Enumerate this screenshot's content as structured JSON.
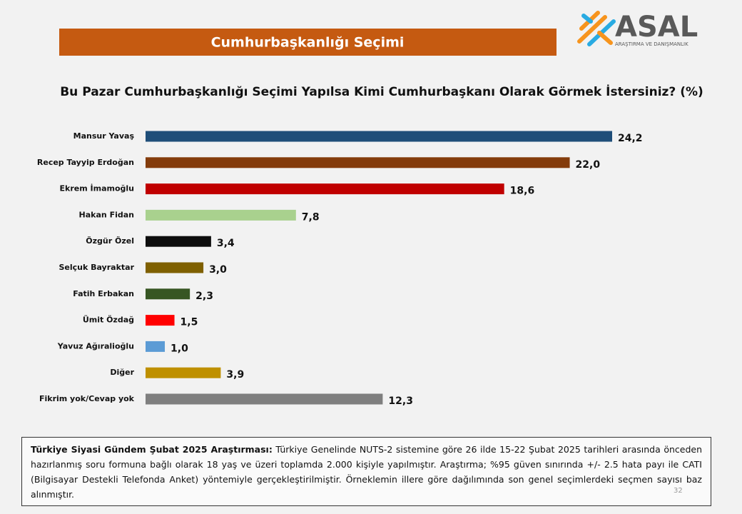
{
  "header": {
    "title": "Cumhurbaşkanlığı Seçimi"
  },
  "logo": {
    "name": "ASAL",
    "tagline": "ARAŞTIRMA VE DANIŞMANLIK"
  },
  "chart_data": {
    "type": "bar",
    "orientation": "horizontal",
    "title": "Bu Pazar Cumhurbaşkanlığı Seçimi Yapılsa Kimi Cumhurbaşkanı Olarak Görmek İstersiniz? (%)",
    "categories": [
      "Mansur Yavaş",
      "Recep Tayyip Erdoğan",
      "Ekrem İmamoğlu",
      "Hakan Fidan",
      "Özgür Özel",
      "Selçuk Bayraktar",
      "Fatih Erbakan",
      "Ümit Özdağ",
      "Yavuz Ağıralioğlu",
      "Diğer",
      "Fikrim yok/Cevap yok"
    ],
    "values": [
      24.2,
      22.0,
      18.6,
      7.8,
      3.4,
      3.0,
      2.3,
      1.5,
      1.0,
      3.9,
      12.3
    ],
    "value_labels": [
      "24,2",
      "22,0",
      "18,6",
      "7,8",
      "3,4",
      "3,0",
      "2,3",
      "1,5",
      "1,0",
      "3,9",
      "12,3"
    ],
    "colors": [
      "#1f4e79",
      "#843c0c",
      "#c00000",
      "#a9d18e",
      "#0d0d0d",
      "#7f6000",
      "#375623",
      "#ff0000",
      "#5b9bd5",
      "#bf9000",
      "#7f7f7f"
    ]
  },
  "note": {
    "lead": "Türkiye Siyasi Gündem Şubat 2025 Araştırması:",
    "text": "Türkiye Genelinde NUTS-2 sistemine göre 26 ilde 15-22 Şubat 2025 tarihleri arasında önceden hazırlanmış soru formuna bağlı olarak 18 yaş ve üzeri toplamda 2.000 kişiyle yapılmıştır. Araştırma; %95 güven sınırında +/- 2.5 hata payı ile CATI (Bilgisayar Destekli Telefonda Anket) yöntemiyle gerçekleştirilmiştir. Örneklemin illere göre dağılımında son genel seçimlerdeki seçmen sayısı baz alınmıştır."
  },
  "page_number": "32"
}
